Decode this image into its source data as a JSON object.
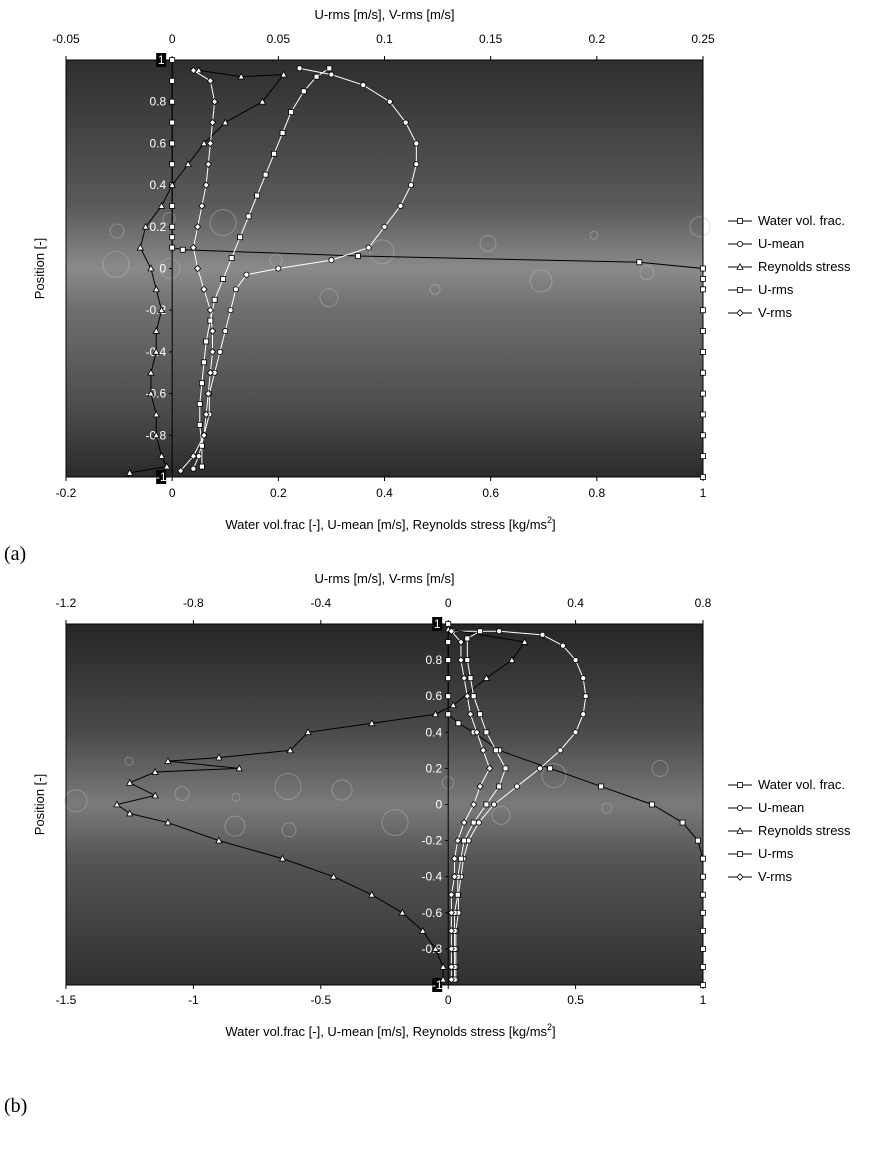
{
  "chart_data": [
    {
      "panel_label": "(a)",
      "type": "line",
      "x_top_label": "U-rms [m/s], V-rms [m/s]",
      "x_bottom_label": "Water vol.frac [-], U-mean [m/s], Reynolds stress [kg/ms",
      "x_bottom_label_sup": "2",
      "x_bottom_label_end": "]",
      "ylabel": "Position [-]",
      "top_axis": {
        "lim": [
          -0.05,
          0.25
        ],
        "ticks": [
          "-0.05",
          "0",
          "0.05",
          "0.1",
          "0.15",
          "0.2",
          "0.25"
        ]
      },
      "bottom_axis": {
        "lim": [
          -0.2,
          1.0
        ],
        "ticks": [
          "-0.2",
          "0",
          "0.2",
          "0.4",
          "0.6",
          "0.8",
          "1"
        ]
      },
      "y_axis": {
        "lim": [
          -1,
          1
        ],
        "ticks": [
          "1",
          "0.8",
          "0.6",
          "0.4",
          "0.2",
          "0",
          "-0.2",
          "-0.4",
          "-0.6",
          "-0.8",
          "-1"
        ]
      },
      "legend": [
        "Water vol. frac.",
        "U-mean",
        "Reynolds stress",
        "U-rms",
        "V-rms"
      ],
      "series": [
        {
          "name": "Water vol. frac.",
          "axis": "bottom",
          "marker": "square",
          "color": "#000000",
          "points": [
            [
              0,
              1
            ],
            [
              0,
              0.9
            ],
            [
              0,
              0.8
            ],
            [
              0,
              0.7
            ],
            [
              0,
              0.6
            ],
            [
              0,
              0.5
            ],
            [
              0,
              0.4
            ],
            [
              0,
              0.3
            ],
            [
              0,
              0.2
            ],
            [
              0,
              0.15
            ],
            [
              0,
              0.1
            ],
            [
              0.02,
              0.09
            ],
            [
              0.35,
              0.06
            ],
            [
              0.88,
              0.03
            ],
            [
              1,
              0.0
            ],
            [
              1,
              -0.05
            ],
            [
              1,
              -0.1
            ],
            [
              1,
              -0.2
            ],
            [
              1,
              -0.3
            ],
            [
              1,
              -0.4
            ],
            [
              1,
              -0.5
            ],
            [
              1,
              -0.6
            ],
            [
              1,
              -0.7
            ],
            [
              1,
              -0.8
            ],
            [
              1,
              -0.9
            ],
            [
              1,
              -1
            ]
          ]
        },
        {
          "name": "U-mean",
          "axis": "bottom",
          "marker": "circle",
          "color": "#ffffff",
          "points": [
            [
              0.24,
              0.96
            ],
            [
              0.3,
              0.93
            ],
            [
              0.36,
              0.88
            ],
            [
              0.41,
              0.8
            ],
            [
              0.44,
              0.7
            ],
            [
              0.46,
              0.6
            ],
            [
              0.46,
              0.5
            ],
            [
              0.45,
              0.4
            ],
            [
              0.43,
              0.3
            ],
            [
              0.4,
              0.2
            ],
            [
              0.37,
              0.1
            ],
            [
              0.3,
              0.04
            ],
            [
              0.2,
              0.0
            ],
            [
              0.14,
              -0.03
            ],
            [
              0.12,
              -0.1
            ],
            [
              0.11,
              -0.2
            ],
            [
              0.1,
              -0.3
            ],
            [
              0.09,
              -0.4
            ],
            [
              0.08,
              -0.5
            ],
            [
              0.07,
              -0.6
            ],
            [
              0.07,
              -0.7
            ],
            [
              0.06,
              -0.8
            ],
            [
              0.05,
              -0.9
            ],
            [
              0.04,
              -0.96
            ]
          ]
        },
        {
          "name": "Reynolds stress",
          "axis": "bottom",
          "marker": "triangle",
          "color": "#000000",
          "points": [
            [
              0.05,
              0.95
            ],
            [
              0.13,
              0.92
            ],
            [
              0.21,
              0.93
            ],
            [
              0.17,
              0.8
            ],
            [
              0.1,
              0.7
            ],
            [
              0.06,
              0.6
            ],
            [
              0.03,
              0.5
            ],
            [
              0.0,
              0.4
            ],
            [
              -0.02,
              0.3
            ],
            [
              -0.05,
              0.2
            ],
            [
              -0.06,
              0.1
            ],
            [
              -0.04,
              0.0
            ],
            [
              -0.03,
              -0.1
            ],
            [
              -0.02,
              -0.2
            ],
            [
              -0.03,
              -0.3
            ],
            [
              -0.03,
              -0.4
            ],
            [
              -0.04,
              -0.5
            ],
            [
              -0.04,
              -0.6
            ],
            [
              -0.03,
              -0.7
            ],
            [
              -0.03,
              -0.8
            ],
            [
              -0.02,
              -0.9
            ],
            [
              -0.01,
              -0.95
            ],
            [
              -0.08,
              -0.98
            ]
          ]
        },
        {
          "name": "U-rms",
          "axis": "top",
          "marker": "square",
          "color": "#ffffff",
          "points": [
            [
              0.074,
              0.96
            ],
            [
              0.068,
              0.92
            ],
            [
              0.062,
              0.85
            ],
            [
              0.056,
              0.75
            ],
            [
              0.052,
              0.65
            ],
            [
              0.048,
              0.55
            ],
            [
              0.044,
              0.45
            ],
            [
              0.04,
              0.35
            ],
            [
              0.036,
              0.25
            ],
            [
              0.032,
              0.15
            ],
            [
              0.028,
              0.05
            ],
            [
              0.024,
              -0.05
            ],
            [
              0.02,
              -0.15
            ],
            [
              0.018,
              -0.25
            ],
            [
              0.016,
              -0.35
            ],
            [
              0.015,
              -0.45
            ],
            [
              0.014,
              -0.55
            ],
            [
              0.013,
              -0.65
            ],
            [
              0.013,
              -0.75
            ],
            [
              0.014,
              -0.85
            ],
            [
              0.014,
              -0.95
            ]
          ]
        },
        {
          "name": "V-rms",
          "axis": "top",
          "marker": "diamond",
          "color": "#ffffff",
          "points": [
            [
              0.01,
              0.95
            ],
            [
              0.018,
              0.9
            ],
            [
              0.02,
              0.8
            ],
            [
              0.019,
              0.7
            ],
            [
              0.018,
              0.6
            ],
            [
              0.017,
              0.5
            ],
            [
              0.016,
              0.4
            ],
            [
              0.014,
              0.3
            ],
            [
              0.012,
              0.2
            ],
            [
              0.01,
              0.1
            ],
            [
              0.012,
              0.0
            ],
            [
              0.015,
              -0.1
            ],
            [
              0.018,
              -0.2
            ],
            [
              0.019,
              -0.3
            ],
            [
              0.019,
              -0.4
            ],
            [
              0.018,
              -0.5
            ],
            [
              0.017,
              -0.6
            ],
            [
              0.016,
              -0.7
            ],
            [
              0.015,
              -0.8
            ],
            [
              0.01,
              -0.9
            ],
            [
              0.004,
              -0.97
            ]
          ]
        }
      ]
    },
    {
      "panel_label": "(b)",
      "type": "line",
      "x_top_label": "U-rms [m/s], V-rms [m/s]",
      "x_bottom_label": "Water vol.frac [-], U-mean [m/s], Reynolds stress [kg/ms",
      "x_bottom_label_sup": "2",
      "x_bottom_label_end": "]",
      "ylabel": "Position [-]",
      "top_axis": {
        "lim": [
          -1.2,
          0.8
        ],
        "ticks": [
          "-1.2",
          "-0.8",
          "-0.4",
          "0",
          "0.4",
          "0.8"
        ]
      },
      "bottom_axis": {
        "lim": [
          -1.5,
          1.0
        ],
        "ticks": [
          "-1.5",
          "-1",
          "-0.5",
          "0",
          "0.5",
          "1"
        ]
      },
      "y_axis": {
        "lim": [
          -1,
          1
        ],
        "ticks": [
          "1",
          "0.8",
          "0.6",
          "0.4",
          "0.2",
          "0",
          "-0.2",
          "-0.4",
          "-0.6",
          "-0.8",
          "-1"
        ]
      },
      "legend": [
        "Water vol. frac.",
        "U-mean",
        "Reynolds stress",
        "U-rms",
        "V-rms"
      ],
      "series": [
        {
          "name": "Water vol. frac.",
          "axis": "bottom",
          "marker": "square",
          "color": "#000000",
          "points": [
            [
              0,
              1
            ],
            [
              0,
              0.9
            ],
            [
              0,
              0.8
            ],
            [
              0,
              0.7
            ],
            [
              0,
              0.6
            ],
            [
              0,
              0.5
            ],
            [
              0.04,
              0.45
            ],
            [
              0.1,
              0.4
            ],
            [
              0.2,
              0.3
            ],
            [
              0.4,
              0.2
            ],
            [
              0.6,
              0.1
            ],
            [
              0.8,
              0.0
            ],
            [
              0.92,
              -0.1
            ],
            [
              0.98,
              -0.2
            ],
            [
              1,
              -0.3
            ],
            [
              1,
              -0.4
            ],
            [
              1,
              -0.5
            ],
            [
              1,
              -0.6
            ],
            [
              1,
              -0.7
            ],
            [
              1,
              -0.8
            ],
            [
              1,
              -0.9
            ],
            [
              1,
              -1
            ]
          ]
        },
        {
          "name": "U-mean",
          "axis": "bottom",
          "marker": "circle",
          "color": "#ffffff",
          "points": [
            [
              0.02,
              0.96
            ],
            [
              0.2,
              0.96
            ],
            [
              0.37,
              0.94
            ],
            [
              0.45,
              0.88
            ],
            [
              0.5,
              0.8
            ],
            [
              0.53,
              0.7
            ],
            [
              0.54,
              0.6
            ],
            [
              0.53,
              0.5
            ],
            [
              0.5,
              0.4
            ],
            [
              0.44,
              0.3
            ],
            [
              0.36,
              0.2
            ],
            [
              0.27,
              0.1
            ],
            [
              0.18,
              0.0
            ],
            [
              0.12,
              -0.1
            ],
            [
              0.08,
              -0.2
            ],
            [
              0.06,
              -0.3
            ],
            [
              0.05,
              -0.4
            ],
            [
              0.04,
              -0.5
            ],
            [
              0.04,
              -0.6
            ],
            [
              0.03,
              -0.7
            ],
            [
              0.03,
              -0.8
            ],
            [
              0.03,
              -0.9
            ],
            [
              0.03,
              -0.97
            ]
          ]
        },
        {
          "name": "Reynolds stress",
          "axis": "bottom",
          "marker": "triangle",
          "color": "#000000",
          "points": [
            [
              0.0,
              0.97
            ],
            [
              0.3,
              0.9
            ],
            [
              0.25,
              0.8
            ],
            [
              0.15,
              0.7
            ],
            [
              0.02,
              0.55
            ],
            [
              -0.05,
              0.5
            ],
            [
              -0.3,
              0.45
            ],
            [
              -0.55,
              0.4
            ],
            [
              -0.62,
              0.3
            ],
            [
              -0.9,
              0.26
            ],
            [
              -1.1,
              0.24
            ],
            [
              -0.82,
              0.2
            ],
            [
              -1.15,
              0.18
            ],
            [
              -1.25,
              0.12
            ],
            [
              -1.15,
              0.05
            ],
            [
              -1.3,
              0.0
            ],
            [
              -1.25,
              -0.05
            ],
            [
              -1.1,
              -0.1
            ],
            [
              -0.9,
              -0.2
            ],
            [
              -0.65,
              -0.3
            ],
            [
              -0.45,
              -0.4
            ],
            [
              -0.3,
              -0.5
            ],
            [
              -0.18,
              -0.6
            ],
            [
              -0.1,
              -0.7
            ],
            [
              -0.05,
              -0.8
            ],
            [
              -0.02,
              -0.9
            ],
            [
              -0.02,
              -0.97
            ]
          ]
        },
        {
          "name": "U-rms",
          "axis": "top",
          "marker": "square",
          "color": "#ffffff",
          "points": [
            [
              0.1,
              0.96
            ],
            [
              0.06,
              0.92
            ],
            [
              0.06,
              0.8
            ],
            [
              0.07,
              0.7
            ],
            [
              0.08,
              0.6
            ],
            [
              0.1,
              0.5
            ],
            [
              0.12,
              0.4
            ],
            [
              0.15,
              0.3
            ],
            [
              0.18,
              0.2
            ],
            [
              0.16,
              0.1
            ],
            [
              0.12,
              0.0
            ],
            [
              0.08,
              -0.1
            ],
            [
              0.05,
              -0.2
            ],
            [
              0.04,
              -0.3
            ],
            [
              0.03,
              -0.4
            ],
            [
              0.03,
              -0.5
            ],
            [
              0.02,
              -0.6
            ],
            [
              0.02,
              -0.7
            ],
            [
              0.02,
              -0.8
            ],
            [
              0.02,
              -0.9
            ],
            [
              0.02,
              -0.97
            ]
          ]
        },
        {
          "name": "V-rms",
          "axis": "top",
          "marker": "diamond",
          "color": "#ffffff",
          "points": [
            [
              0.01,
              0.96
            ],
            [
              0.04,
              0.9
            ],
            [
              0.04,
              0.8
            ],
            [
              0.05,
              0.7
            ],
            [
              0.06,
              0.6
            ],
            [
              0.07,
              0.5
            ],
            [
              0.09,
              0.4
            ],
            [
              0.11,
              0.3
            ],
            [
              0.13,
              0.2
            ],
            [
              0.1,
              0.1
            ],
            [
              0.08,
              0.0
            ],
            [
              0.05,
              -0.1
            ],
            [
              0.03,
              -0.2
            ],
            [
              0.02,
              -0.3
            ],
            [
              0.02,
              -0.4
            ],
            [
              0.01,
              -0.5
            ],
            [
              0.01,
              -0.6
            ],
            [
              0.01,
              -0.7
            ],
            [
              0.01,
              -0.8
            ],
            [
              0.01,
              -0.9
            ],
            [
              0.01,
              -0.97
            ]
          ]
        }
      ]
    }
  ]
}
